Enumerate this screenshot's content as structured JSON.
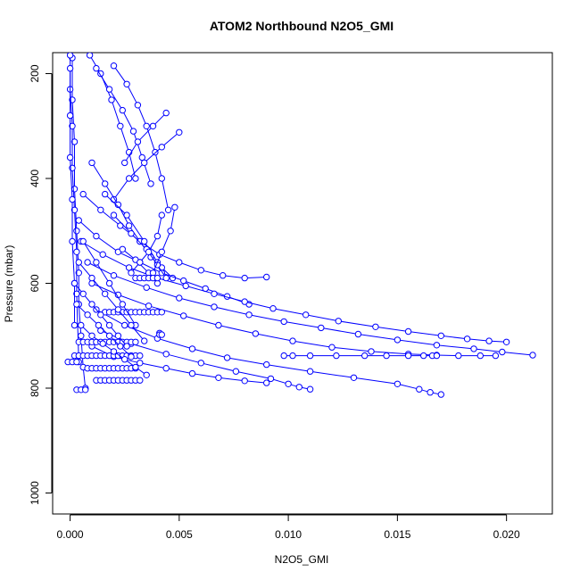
{
  "chart_data": {
    "type": "scatter",
    "title": "ATOM2 Northbound N2O5_GMI",
    "xlabel": "N2O5_GMI",
    "ylabel": "Pressure (mbar)",
    "xlim": [
      -0.0008,
      0.0221
    ],
    "ylim": [
      1040,
      160
    ],
    "y_reversed": true,
    "x_ticks": [
      0.0,
      0.005,
      0.01,
      0.015,
      0.02
    ],
    "x_tick_labels": [
      "0.000",
      "0.005",
      "0.010",
      "0.015",
      "0.020"
    ],
    "y_ticks": [
      200,
      400,
      600,
      800,
      1000
    ],
    "y_tick_labels": [
      "200",
      "400",
      "600",
      "800",
      "1000"
    ],
    "grid": false,
    "legend": "none",
    "color": "#0000ff",
    "marker": "open-circle",
    "series": [
      {
        "x": [
          0.0001,
          0.0001,
          0.0002,
          0.0002,
          0.0003,
          0.0004,
          0.0004,
          0.0005,
          0.0006,
          0.0007
        ],
        "y": [
          170,
          250,
          330,
          420,
          500,
          580,
          640,
          700,
          760,
          800
        ]
      },
      {
        "x": [
          0.0,
          0.0,
          0.0001,
          0.0001,
          0.0002,
          0.0003,
          0.0003,
          0.0004
        ],
        "y": [
          165,
          230,
          300,
          380,
          460,
          540,
          620,
          750
        ]
      },
      {
        "x": [
          0.0,
          0.0,
          0.0,
          0.0001,
          0.0001,
          0.0002,
          0.0002
        ],
        "y": [
          190,
          280,
          360,
          440,
          520,
          600,
          680
        ]
      },
      {
        "x": [
          0.0009,
          0.0014,
          0.0019,
          0.0023,
          0.0027,
          0.003
        ],
        "y": [
          165,
          200,
          250,
          300,
          350,
          400
        ]
      },
      {
        "x": [
          0.0012,
          0.0018,
          0.0024,
          0.0029,
          0.0033,
          0.0037
        ],
        "y": [
          190,
          230,
          270,
          310,
          360,
          410
        ]
      },
      {
        "x": [
          0.002,
          0.0026,
          0.0031,
          0.0035,
          0.0039,
          0.0042,
          0.0045
        ],
        "y": [
          185,
          220,
          260,
          300,
          350,
          400,
          460
        ]
      },
      {
        "x": [
          0.0044,
          0.0038,
          0.0031,
          0.0025
        ],
        "y": [
          275,
          300,
          330,
          370
        ]
      },
      {
        "x": [
          0.005,
          0.0042,
          0.0034,
          0.0027,
          0.002
        ],
        "y": [
          312,
          340,
          370,
          400,
          440
        ]
      },
      {
        "x": [
          0.001,
          0.0016,
          0.0022,
          0.0027,
          0.0032,
          0.0037,
          0.0042,
          0.0047
        ],
        "y": [
          370,
          410,
          450,
          490,
          520,
          550,
          570,
          590
        ]
      },
      {
        "x": [
          0.0006,
          0.0014,
          0.0023,
          0.0032,
          0.0041,
          0.005,
          0.006,
          0.007,
          0.008,
          0.009
        ],
        "y": [
          430,
          460,
          490,
          520,
          545,
          560,
          575,
          585,
          590,
          588
        ]
      },
      {
        "x": [
          0.0004,
          0.0012,
          0.0022,
          0.0032,
          0.0042,
          0.0052,
          0.0062,
          0.0072,
          0.0082
        ],
        "y": [
          480,
          510,
          540,
          560,
          580,
          595,
          610,
          625,
          640
        ]
      },
      {
        "x": [
          0.0005,
          0.0015,
          0.0027,
          0.004,
          0.0053,
          0.0066,
          0.008,
          0.0093,
          0.0108,
          0.0123,
          0.014,
          0.0155,
          0.017,
          0.0182,
          0.0192,
          0.02
        ],
        "y": [
          520,
          545,
          570,
          590,
          605,
          620,
          635,
          648,
          660,
          672,
          683,
          692,
          700,
          706,
          710,
          712
        ]
      },
      {
        "x": [
          0.0008,
          0.002,
          0.0035,
          0.005,
          0.0066,
          0.0082,
          0.0098,
          0.0115,
          0.0132,
          0.015,
          0.0168,
          0.0185,
          0.0198,
          0.0212
        ],
        "y": [
          560,
          585,
          608,
          628,
          645,
          660,
          673,
          685,
          697,
          708,
          718,
          725,
          731,
          737
        ]
      },
      {
        "x": [
          0.001,
          0.0022,
          0.0036,
          0.0052,
          0.0068,
          0.0085,
          0.0102,
          0.012,
          0.0138,
          0.0155,
          0.0168,
          0.0178,
          0.0188,
          0.0195
        ],
        "y": [
          600,
          622,
          643,
          662,
          680,
          696,
          710,
          722,
          730,
          735,
          737,
          738,
          738,
          738
        ]
      },
      {
        "x": [
          0.0012,
          0.0025,
          0.004,
          0.0056,
          0.0072,
          0.009,
          0.011,
          0.013,
          0.015,
          0.016,
          0.0165,
          0.017
        ],
        "y": [
          650,
          680,
          705,
          725,
          742,
          755,
          768,
          780,
          792,
          802,
          808,
          812
        ]
      },
      {
        "x": [
          0.0014,
          0.0028,
          0.0044,
          0.006,
          0.0076,
          0.0092,
          0.01,
          0.0105,
          0.011
        ],
        "y": [
          690,
          715,
          735,
          752,
          768,
          782,
          792,
          798,
          802
        ]
      },
      {
        "x": [
          0.001,
          0.002,
          0.0032,
          0.0044,
          0.0056,
          0.0068,
          0.008,
          0.009
        ],
        "y": [
          720,
          740,
          752,
          762,
          772,
          780,
          786,
          790
        ]
      },
      {
        "x": [
          0.0016,
          0.0026,
          0.0034,
          0.004
        ],
        "y": [
          430,
          470,
          520,
          560
        ]
      },
      {
        "x": [
          0.002,
          0.0028,
          0.0035,
          0.004,
          0.0044
        ],
        "y": [
          470,
          505,
          535,
          565,
          590
        ]
      },
      {
        "x": [
          0.0024,
          0.003,
          0.0036,
          0.004
        ],
        "y": [
          535,
          555,
          580,
          600
        ]
      },
      {
        "x": [
          0.0042,
          0.004,
          0.0036,
          0.0032,
          0.0028
        ],
        "y": [
          470,
          510,
          540,
          560,
          580
        ]
      },
      {
        "x": [
          0.0048,
          0.0046,
          0.0042,
          0.0038
        ],
        "y": [
          455,
          500,
          540,
          580
        ]
      },
      {
        "x": [
          0.003,
          0.0032,
          0.0034,
          0.0036,
          0.0038,
          0.004
        ],
        "y": [
          590,
          590,
          590,
          590,
          590,
          590
        ]
      },
      {
        "x": [
          0.0016,
          0.0018,
          0.002,
          0.0022,
          0.0024,
          0.0026,
          0.0028,
          0.003,
          0.0032,
          0.0034,
          0.0036,
          0.0038,
          0.004,
          0.0042
        ],
        "y": [
          655,
          655,
          655,
          655,
          655,
          655,
          655,
          655,
          655,
          655,
          655,
          655,
          655,
          655
        ]
      },
      {
        "x": [
          0.0004,
          0.0006,
          0.0008,
          0.001,
          0.0012,
          0.0014,
          0.0016,
          0.0018,
          0.002,
          0.0022,
          0.0024,
          0.0026,
          0.0028,
          0.003
        ],
        "y": [
          712,
          712,
          712,
          712,
          712,
          712,
          712,
          712,
          712,
          712,
          712,
          712,
          712,
          712
        ]
      },
      {
        "x": [
          0.0002,
          0.0004,
          0.0006,
          0.0008,
          0.001,
          0.0012,
          0.0014,
          0.0016,
          0.0018,
          0.002,
          0.0022,
          0.0024,
          0.0026,
          0.0028,
          0.003,
          0.0032
        ],
        "y": [
          738,
          738,
          738,
          738,
          738,
          738,
          738,
          738,
          738,
          738,
          738,
          738,
          738,
          738,
          738,
          738
        ]
      },
      {
        "x": [
          0.0098,
          0.0102,
          0.011,
          0.0122,
          0.0135,
          0.0145,
          0.0155,
          0.0162,
          0.0166,
          0.0168
        ],
        "y": [
          738,
          738,
          738,
          738,
          738,
          738,
          738,
          738,
          738,
          738
        ]
      },
      {
        "x": [
          0.0008,
          0.001,
          0.0012,
          0.0014,
          0.0016,
          0.0018,
          0.002,
          0.0022,
          0.0024,
          0.0026,
          0.0028,
          0.003
        ],
        "y": [
          762,
          762,
          762,
          762,
          762,
          762,
          762,
          762,
          762,
          762,
          762,
          762
        ]
      },
      {
        "x": [
          0.0012,
          0.0014,
          0.0016,
          0.0018,
          0.002,
          0.0022,
          0.0024,
          0.0026,
          0.0028,
          0.003,
          0.0032
        ],
        "y": [
          785,
          785,
          785,
          785,
          785,
          785,
          785,
          785,
          785,
          785,
          785
        ]
      },
      {
        "x": [
          -0.0001,
          0.0001,
          0.0003
        ],
        "y": [
          750,
          750,
          750
        ]
      },
      {
        "x": [
          0.0003,
          0.0005,
          0.0007
        ],
        "y": [
          803,
          803,
          803
        ]
      },
      {
        "x": [
          0.0041,
          0.0041,
          0.0042
        ],
        "y": [
          695,
          698,
          698
        ]
      },
      {
        "x": [
          0.0002,
          0.0006,
          0.001,
          0.0014,
          0.0018,
          0.0022,
          0.0026
        ],
        "y": [
          600,
          620,
          640,
          660,
          680,
          700,
          720
        ]
      },
      {
        "x": [
          0.0003,
          0.0008,
          0.0013,
          0.0018,
          0.0023,
          0.0028
        ],
        "y": [
          640,
          660,
          680,
          700,
          720,
          740
        ]
      },
      {
        "x": [
          0.0005,
          0.001,
          0.0015,
          0.002,
          0.0025,
          0.003,
          0.0035
        ],
        "y": [
          680,
          700,
          715,
          730,
          745,
          760,
          775
        ]
      },
      {
        "x": [
          0.0006,
          0.0012,
          0.0018,
          0.0024,
          0.003
        ],
        "y": [
          520,
          560,
          600,
          640,
          680
        ]
      },
      {
        "x": [
          0.0004,
          0.001,
          0.0016,
          0.0022,
          0.0028,
          0.0034
        ],
        "y": [
          560,
          590,
          620,
          650,
          680,
          710
        ]
      }
    ]
  }
}
